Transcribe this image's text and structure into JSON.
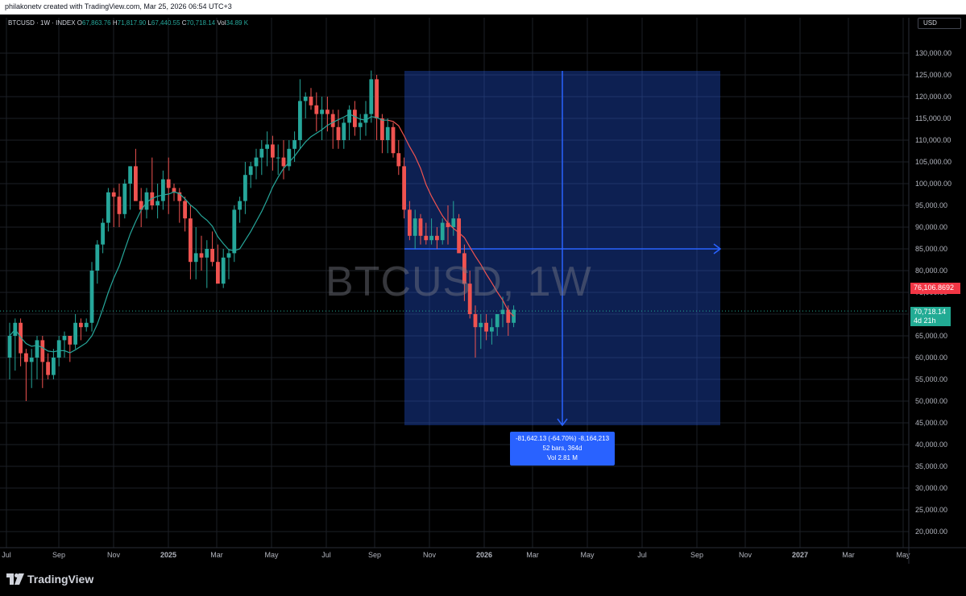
{
  "header": {
    "attribution": "philakonetv created with TradingView.com, Mar 25, 2026 06:54 UTC+3"
  },
  "legend": {
    "symbol": "BTCUSD · 1W · INDEX",
    "o_label": "O",
    "o_value": "67,863.76",
    "h_label": "H",
    "h_value": "71,817.90",
    "l_label": "L",
    "l_value": "67,440.55",
    "c_label": "C",
    "c_value": "70,718.14",
    "vol_label": "Vol",
    "vol_value": "34.89 K"
  },
  "currency": "USD",
  "watermark": "BTCUSD, 1W",
  "price_axis": [
    "130,000.00",
    "125,000.00",
    "120,000.00",
    "115,000.00",
    "110,000.00",
    "105,000.00",
    "100,000.00",
    "95,000.00",
    "90,000.00",
    "85,000.00",
    "80,000.00",
    "75,000.00",
    "70,000.00",
    "65,000.00",
    "60,000.00",
    "55,000.00",
    "50,000.00",
    "45,000.00",
    "40,000.00",
    "35,000.00",
    "30,000.00",
    "25,000.00",
    "20,000.00"
  ],
  "time_axis": [
    "Jul",
    "Sep",
    "Nov",
    "2025",
    "Mar",
    "May",
    "Jul",
    "Sep",
    "Nov",
    "2026",
    "Mar",
    "May",
    "Jul",
    "Sep",
    "Nov",
    "2027",
    "Mar",
    "May"
  ],
  "ma_tag": {
    "value": "76,106.8692",
    "color": "#f23645"
  },
  "last_price_tag": {
    "value": "70,718.14",
    "countdown": "4d 21h",
    "color": "#22ab94"
  },
  "measure": {
    "line1": "-81,642.13 (-64.70%) -8,164,213",
    "line2": "52 bars, 364d",
    "line3": "Vol 2.81 M"
  },
  "footer": {
    "brand": "TradingView"
  },
  "colors": {
    "up": "#26a69a",
    "down": "#ef5350",
    "ma_teal": "#26a69a",
    "ma_red": "#ef5350",
    "measure_fill": "#2962ff"
  }
}
